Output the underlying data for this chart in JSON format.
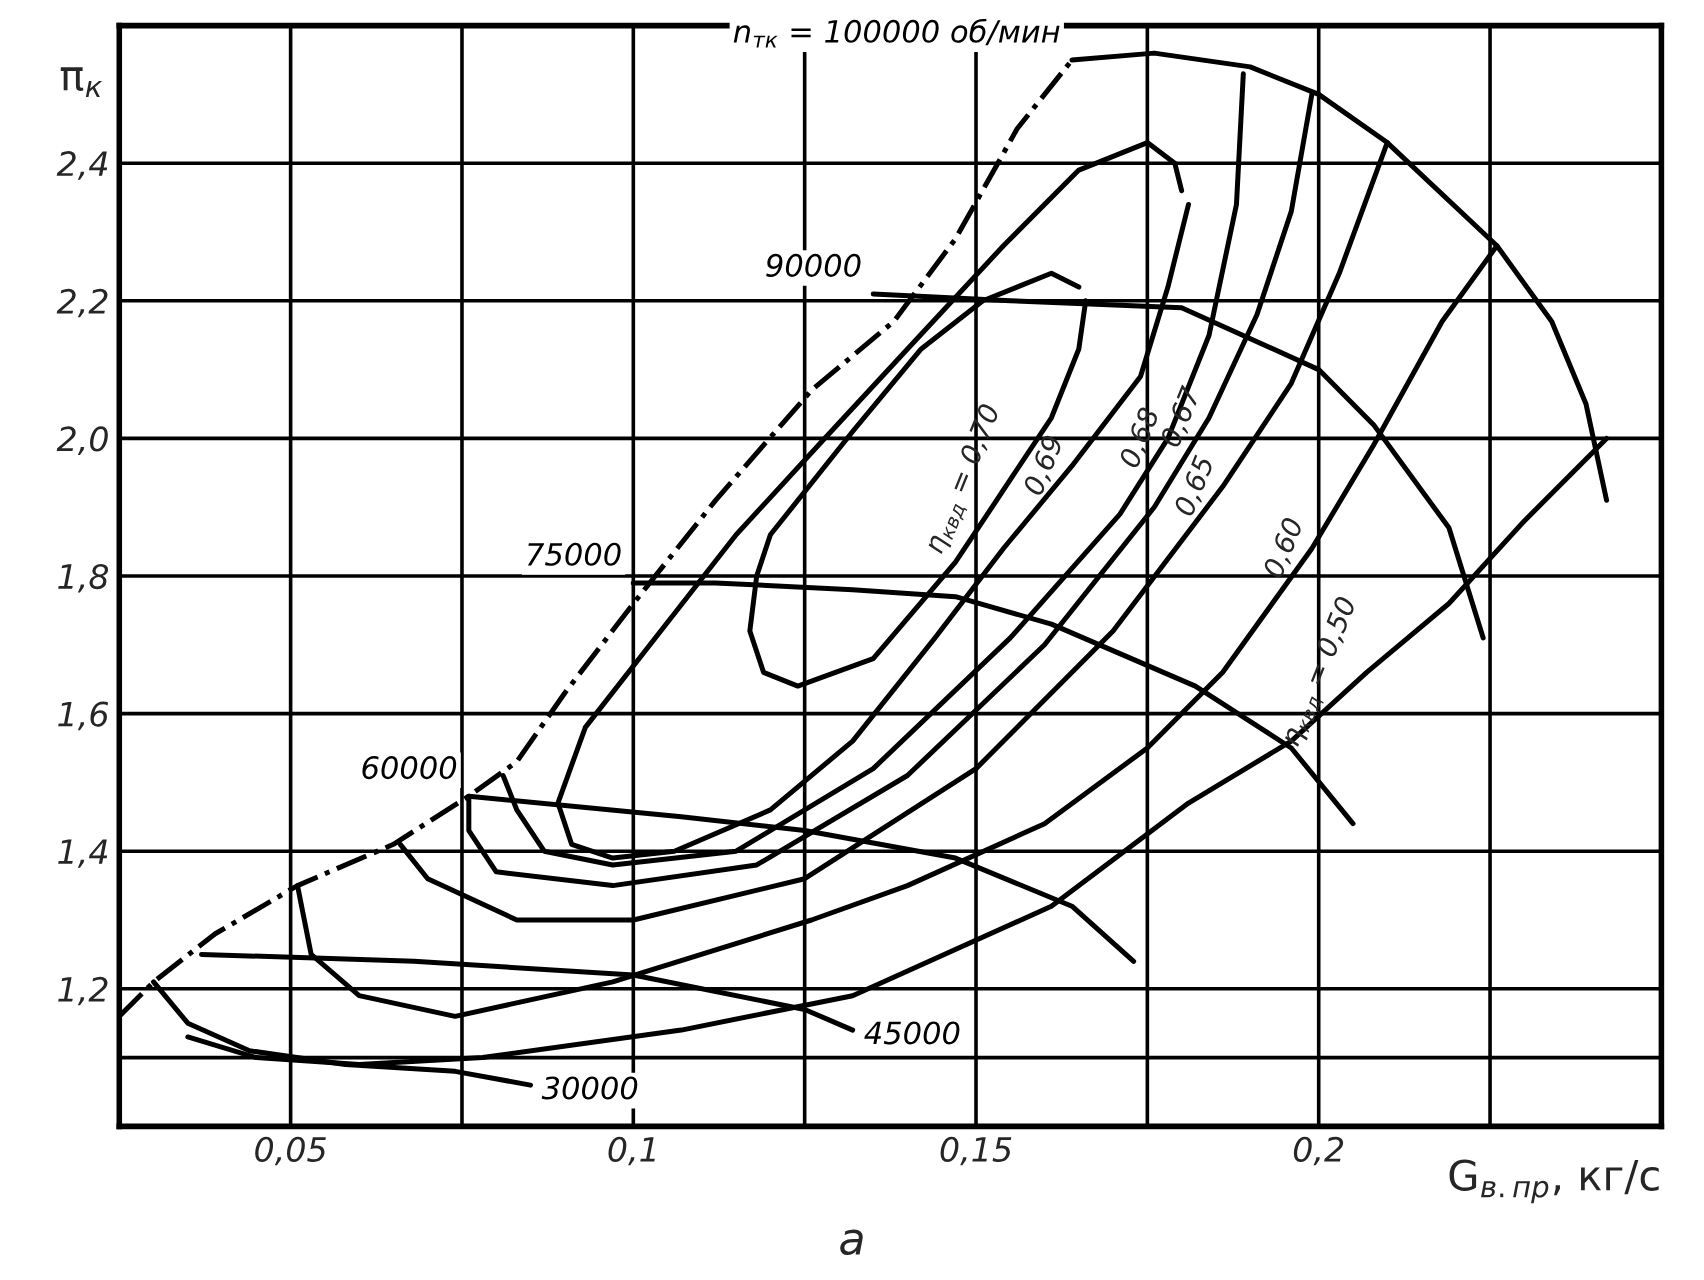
{
  "chart_data": {
    "type": "line",
    "xlabel": "G$_{в.пр}$, кг/с",
    "ylabel": "π$_{к}$",
    "annotations": [
      "а"
    ],
    "xlim": [
      0.025,
      0.25
    ],
    "ylim": [
      1.0,
      2.6
    ],
    "xticks": [
      {
        "value": 0.025,
        "label": null
      },
      {
        "value": 0.05,
        "label": "0,05"
      },
      {
        "value": 0.075,
        "label": null
      },
      {
        "value": 0.1,
        "label": "0,1"
      },
      {
        "value": 0.125,
        "label": null
      },
      {
        "value": 0.15,
        "label": "0,15"
      },
      {
        "value": 0.175,
        "label": null
      },
      {
        "value": 0.2,
        "label": "0,2"
      },
      {
        "value": 0.225,
        "label": null
      }
    ],
    "yticks": [
      {
        "value": 1.1,
        "label": null
      },
      {
        "value": 1.2,
        "label": "1,2"
      },
      {
        "value": 1.4,
        "label": "1,4"
      },
      {
        "value": 1.6,
        "label": "1,6"
      },
      {
        "value": 1.8,
        "label": "1,8"
      },
      {
        "value": 2.0,
        "label": "2,0"
      },
      {
        "value": 2.2,
        "label": "2,2"
      },
      {
        "value": 2.4,
        "label": "2,4"
      }
    ],
    "grid": true,
    "marker": "none",
    "series": [
      {
        "color": "#000000",
        "line_style": "dashdot",
        "x": [
          0.025,
          0.03,
          0.039,
          0.051,
          0.065,
          0.076,
          0.083,
          0.09,
          0.1,
          0.112,
          0.126,
          0.138,
          0.147,
          0.156,
          0.164
        ],
        "values": [
          1.16,
          1.21,
          1.28,
          1.35,
          1.41,
          1.48,
          1.53,
          1.63,
          1.76,
          1.91,
          2.07,
          2.17,
          2.29,
          2.45,
          2.55
        ]
      },
      {
        "name": "n$_{тк}$ = 100000 об/мин",
        "color": "#000000",
        "x": [
          0.164,
          0.176,
          0.19,
          0.2,
          0.21,
          0.226,
          0.234,
          0.239,
          0.242
        ],
        "values": [
          2.55,
          2.56,
          2.54,
          2.5,
          2.43,
          2.28,
          2.17,
          2.05,
          1.91
        ]
      },
      {
        "name": "90000",
        "color": "#000000",
        "x": [
          0.135,
          0.155,
          0.18,
          0.2,
          0.208,
          0.219,
          0.224
        ],
        "values": [
          2.21,
          2.2,
          2.19,
          2.1,
          2.02,
          1.87,
          1.71
        ]
      },
      {
        "name": "75000",
        "color": "#000000",
        "x": [
          0.1,
          0.112,
          0.132,
          0.147,
          0.161,
          0.182,
          0.196,
          0.205
        ],
        "values": [
          1.79,
          1.79,
          1.78,
          1.77,
          1.73,
          1.64,
          1.55,
          1.44
        ]
      },
      {
        "name": "60000",
        "color": "#000000",
        "x": [
          0.076,
          0.107,
          0.125,
          0.147,
          0.164,
          0.173
        ],
        "values": [
          1.48,
          1.45,
          1.43,
          1.39,
          1.32,
          1.24
        ]
      },
      {
        "name": "45000",
        "color": "#000000",
        "x": [
          0.037,
          0.068,
          0.1,
          0.125,
          0.132
        ],
        "values": [
          1.25,
          1.24,
          1.22,
          1.17,
          1.14
        ]
      },
      {
        "name": "30000",
        "color": "#000000",
        "x": [
          0.03,
          0.035,
          0.044,
          0.058,
          0.074,
          0.085
        ],
        "values": [
          1.21,
          1.15,
          1.11,
          1.09,
          1.08,
          1.06
        ]
      },
      {
        "name": "η$_{квд}$ = 0,70",
        "color": "#000000",
        "x": [
          0.166,
          0.165,
          0.161,
          0.155,
          0.147,
          0.135,
          0.124,
          0.119,
          0.117,
          0.118,
          0.12,
          0.132,
          0.142,
          0.151,
          0.161,
          0.165
        ],
        "values": [
          2.2,
          2.13,
          2.03,
          1.94,
          1.82,
          1.68,
          1.64,
          1.66,
          1.72,
          1.8,
          1.86,
          2.01,
          2.13,
          2.2,
          2.24,
          2.22
        ]
      },
      {
        "name": "0,69",
        "color": "#000000",
        "x": [
          0.181,
          0.178,
          0.174,
          0.164,
          0.154,
          0.144,
          0.132,
          0.12,
          0.106,
          0.097,
          0.091,
          0.089,
          0.093,
          0.104,
          0.115,
          0.127,
          0.14,
          0.154,
          0.165,
          0.175,
          0.179,
          0.18
        ],
        "values": [
          2.34,
          2.22,
          2.09,
          1.96,
          1.84,
          1.71,
          1.56,
          1.46,
          1.4,
          1.39,
          1.41,
          1.47,
          1.58,
          1.72,
          1.86,
          1.99,
          2.13,
          2.28,
          2.39,
          2.43,
          2.4,
          2.36
        ]
      },
      {
        "name": "0,68",
        "color": "#000000",
        "x": [
          0.189,
          0.188,
          0.184,
          0.178,
          0.171,
          0.155,
          0.135,
          0.115,
          0.097,
          0.087,
          0.083,
          0.081
        ],
        "values": [
          2.53,
          2.34,
          2.15,
          2.0,
          1.89,
          1.71,
          1.52,
          1.4,
          1.38,
          1.4,
          1.46,
          1.51
        ]
      },
      {
        "name": "0,67",
        "color": "#000000",
        "x": [
          0.199,
          0.196,
          0.191,
          0.184,
          0.176,
          0.16,
          0.14,
          0.118,
          0.097,
          0.08,
          0.076,
          0.076
        ],
        "values": [
          2.5,
          2.33,
          2.18,
          2.03,
          1.9,
          1.7,
          1.51,
          1.38,
          1.35,
          1.37,
          1.43,
          1.48
        ]
      },
      {
        "name": "0,65",
        "color": "#000000",
        "x": [
          0.21,
          0.203,
          0.196,
          0.186,
          0.17,
          0.15,
          0.125,
          0.1,
          0.083,
          0.07,
          0.066
        ],
        "values": [
          2.43,
          2.24,
          2.08,
          1.93,
          1.72,
          1.52,
          1.36,
          1.3,
          1.3,
          1.36,
          1.41
        ]
      },
      {
        "name": "0,60",
        "color": "#000000",
        "x": [
          0.226,
          0.218,
          0.208,
          0.199,
          0.186,
          0.175,
          0.16,
          0.14,
          0.126,
          0.097,
          0.074,
          0.06,
          0.053,
          0.051
        ],
        "values": [
          2.28,
          2.17,
          1.99,
          1.84,
          1.66,
          1.55,
          1.44,
          1.35,
          1.3,
          1.21,
          1.16,
          1.19,
          1.25,
          1.35
        ]
      },
      {
        "name": "η$_{квд}$ = 0,50",
        "color": "#000000",
        "x": [
          0.242,
          0.23,
          0.219,
          0.207,
          0.196,
          0.181,
          0.161,
          0.132,
          0.107,
          0.078,
          0.06,
          0.045,
          0.035
        ],
        "values": [
          2.0,
          1.88,
          1.76,
          1.66,
          1.56,
          1.47,
          1.32,
          1.19,
          1.14,
          1.1,
          1.09,
          1.1,
          1.13
        ]
      }
    ]
  }
}
